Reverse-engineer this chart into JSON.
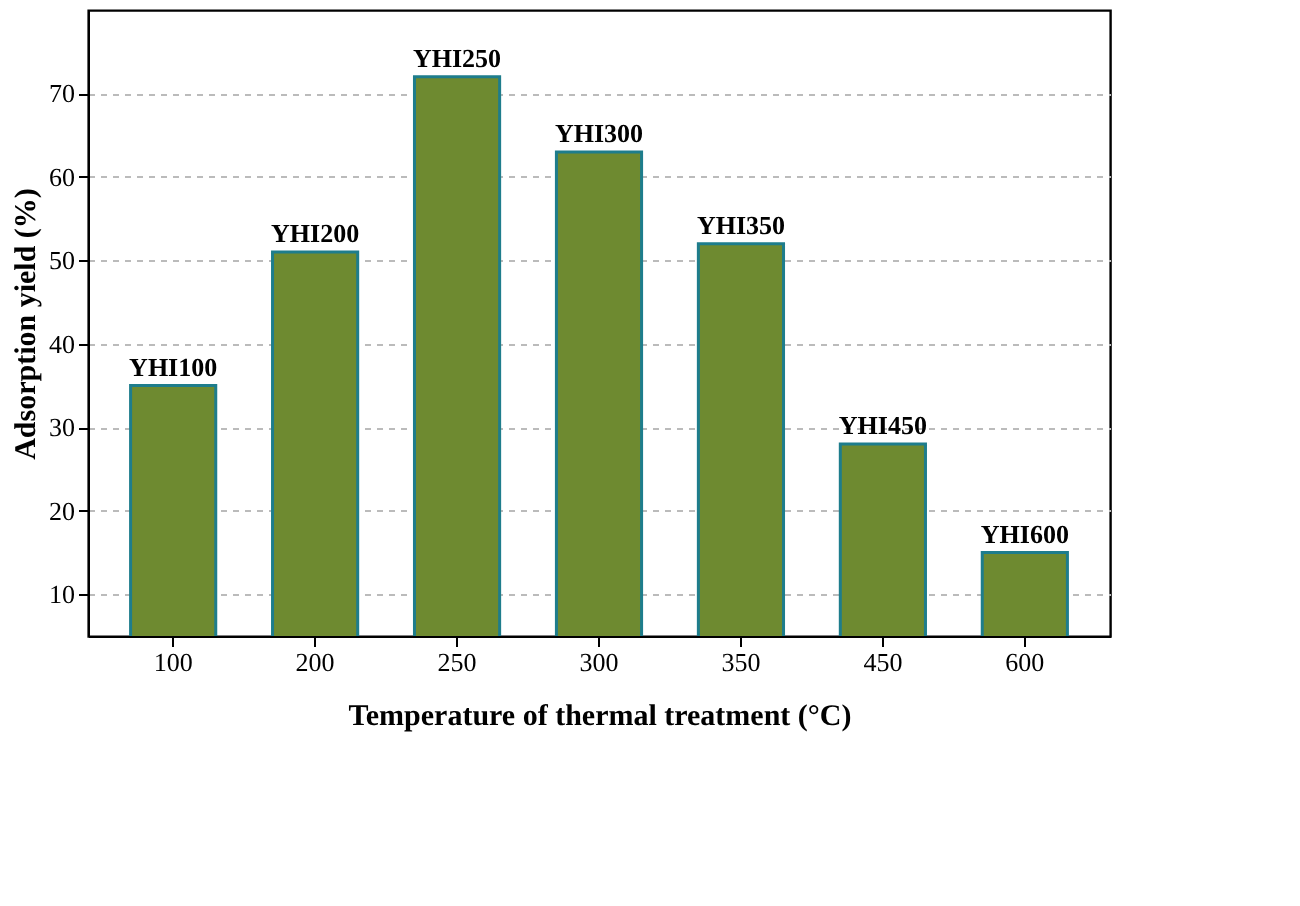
{
  "chart_data": {
    "type": "bar",
    "xlabel": "Temperature of thermal treatment (°C)",
    "ylabel": "Adsorption yield (%)",
    "categories": [
      "100",
      "200",
      "250",
      "300",
      "350",
      "450",
      "600"
    ],
    "values": [
      35,
      51,
      72,
      63,
      52,
      28,
      15
    ],
    "color": "#6e8a30",
    "ylim": [
      5,
      80
    ],
    "yticks": [
      10,
      20,
      30,
      40,
      50,
      60,
      70
    ],
    "grid": "y",
    "annotations": [
      {
        "text": "YHI100",
        "x": "100",
        "y": 35
      },
      {
        "text": "YHI200",
        "x": "200",
        "y": 51
      },
      {
        "text": "YHI250",
        "x": "250",
        "y": 72
      },
      {
        "text": "YHI300",
        "x": "300",
        "y": 63
      },
      {
        "text": "YHI350",
        "x": "350",
        "y": 52
      },
      {
        "text": "YHI450",
        "x": "450",
        "y": 28
      },
      {
        "text": "YHI600",
        "x": "600",
        "y": 15
      }
    ]
  }
}
